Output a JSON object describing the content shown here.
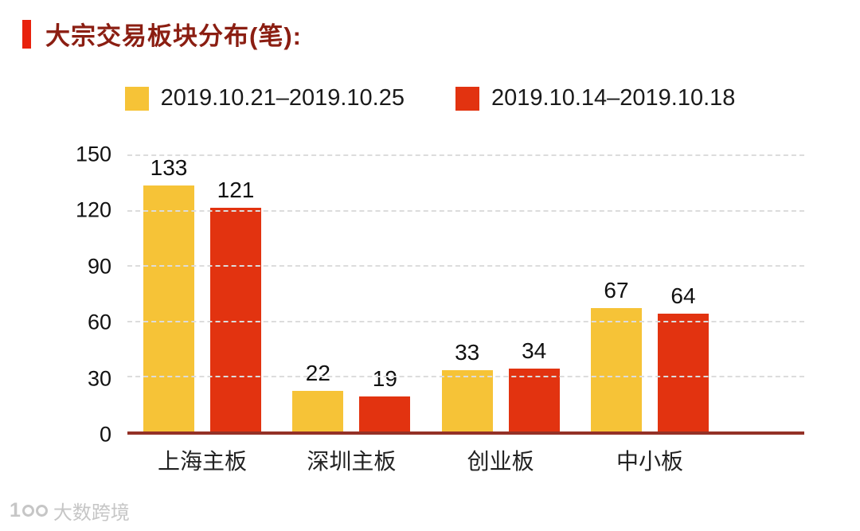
{
  "title": "大宗交易板块分布(笔):",
  "legend": {
    "series1_label": "2019.10.21–2019.10.25",
    "series2_label": "2019.10.14–2019.10.18"
  },
  "chart_data": {
    "type": "bar",
    "title": "大宗交易板块分布(笔):",
    "categories": [
      "上海主板",
      "深圳主板",
      "创业板",
      "中小板"
    ],
    "series": [
      {
        "name": "2019.10.21–2019.10.25",
        "color": "#F6C337",
        "values": [
          133,
          22,
          33,
          67
        ]
      },
      {
        "name": "2019.10.14–2019.10.18",
        "color": "#E23310",
        "values": [
          121,
          19,
          34,
          64
        ]
      }
    ],
    "xlabel": "",
    "ylabel": "",
    "ylim": [
      0,
      150
    ],
    "yticks": [
      0,
      30,
      60,
      90,
      120,
      150
    ],
    "grid": "horizontal-dashed",
    "legend_position": "top-center"
  },
  "colors": {
    "accent_bar": "#E8220D",
    "title_text": "#8B1E12",
    "series1": "#F6C337",
    "series2": "#E23310",
    "axis_line": "#943126",
    "gridline": "#DCDCDC",
    "label_text": "#111111",
    "watermark": "#C6C6C6",
    "background": "#FFFFFF"
  },
  "watermark": {
    "logo_icon": "100-logo",
    "text": "大数跨境"
  }
}
